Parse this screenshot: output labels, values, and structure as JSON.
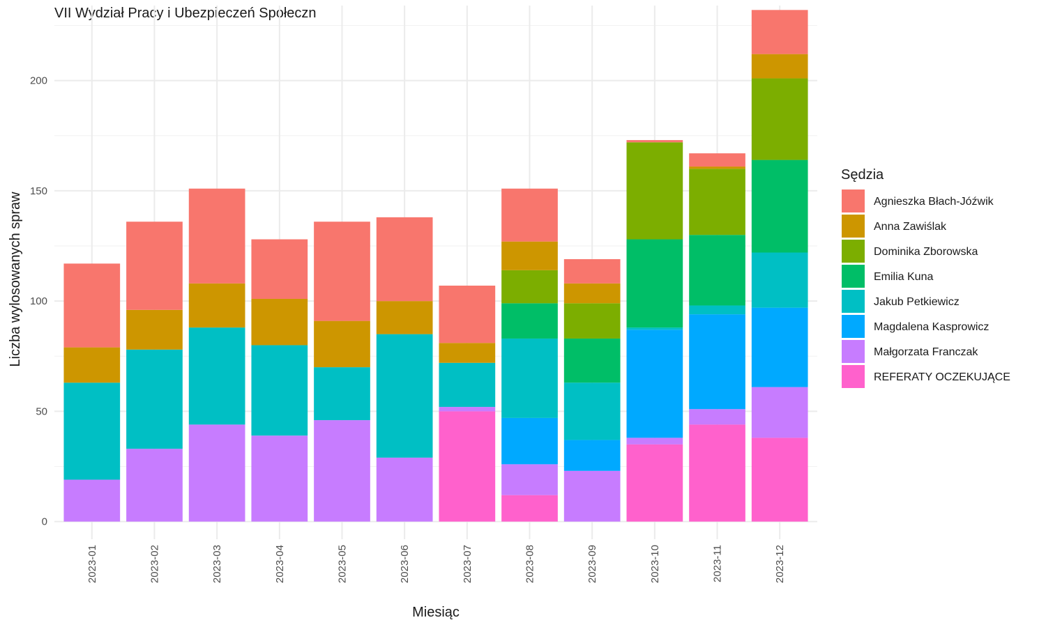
{
  "chart_data": {
    "type": "bar",
    "stacked": true,
    "title": "VII Wydział Pracy i Ubezpieczeń Społeczn",
    "xlabel": "Miesiąc",
    "ylabel": "Liczba wylosowanych spraw",
    "ylim": [
      -8,
      234
    ],
    "yticks": [
      0,
      50,
      100,
      150,
      200
    ],
    "grid": true,
    "legend": {
      "title": "Sędzia",
      "position": "right"
    },
    "categories": [
      "2023-01",
      "2023-02",
      "2023-03",
      "2023-04",
      "2023-05",
      "2023-06",
      "2023-07",
      "2023-08",
      "2023-09",
      "2023-10",
      "2023-11",
      "2023-12"
    ],
    "series": [
      {
        "name": "REFERATY OCZEKUJĄCE",
        "color": "#FF61CC",
        "values": [
          0,
          0,
          0,
          0,
          0,
          0,
          50,
          12,
          0,
          35,
          44,
          38
        ]
      },
      {
        "name": "Małgorzata Franczak",
        "color": "#C77CFF",
        "values": [
          19,
          33,
          44,
          39,
          46,
          29,
          2,
          14,
          23,
          3,
          7,
          23
        ]
      },
      {
        "name": "Magdalena Kasprowicz",
        "color": "#00A9FF",
        "values": [
          0,
          0,
          0,
          0,
          0,
          0,
          0,
          21,
          14,
          49,
          43,
          36
        ]
      },
      {
        "name": "Jakub Petkiewicz",
        "color": "#00BFC4",
        "values": [
          44,
          45,
          44,
          41,
          24,
          56,
          20,
          36,
          26,
          1,
          4,
          25
        ]
      },
      {
        "name": "Emilia Kuna",
        "color": "#00BE67",
        "values": [
          0,
          0,
          0,
          0,
          0,
          0,
          0,
          16,
          20,
          40,
          32,
          42
        ]
      },
      {
        "name": "Dominika Zborowska",
        "color": "#7CAE00",
        "values": [
          0,
          0,
          0,
          0,
          0,
          0,
          0,
          15,
          16,
          44,
          30,
          37
        ]
      },
      {
        "name": "Anna Zawiślak",
        "color": "#CD9600",
        "values": [
          16,
          18,
          20,
          21,
          21,
          15,
          9,
          13,
          9,
          0,
          1,
          11
        ]
      },
      {
        "name": "Agnieszka Błach-Jóźwik",
        "color": "#F8766D",
        "values": [
          38,
          40,
          43,
          27,
          45,
          38,
          26,
          24,
          11,
          1,
          6,
          20
        ]
      }
    ],
    "legend_order": [
      "Agnieszka Błach-Jóźwik",
      "Anna Zawiślak",
      "Dominika Zborowska",
      "Emilia Kuna",
      "Jakub Petkiewicz",
      "Magdalena Kasprowicz",
      "Małgorzata Franczak",
      "REFERATY OCZEKUJĄCE"
    ]
  }
}
